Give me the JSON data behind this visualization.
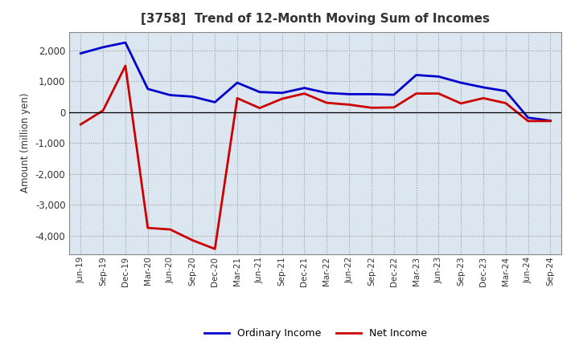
{
  "title": "[3758]  Trend of 12-Month Moving Sum of Incomes",
  "ylabel": "Amount (million yen)",
  "x_labels": [
    "Jun-19",
    "Sep-19",
    "Dec-19",
    "Mar-20",
    "Jun-20",
    "Sep-20",
    "Dec-20",
    "Mar-21",
    "Jun-21",
    "Sep-21",
    "Dec-21",
    "Mar-22",
    "Jun-22",
    "Sep-22",
    "Dec-22",
    "Mar-23",
    "Jun-23",
    "Sep-23",
    "Dec-23",
    "Mar-24",
    "Jun-24",
    "Sep-24"
  ],
  "ordinary_income": [
    1900,
    2100,
    2250,
    750,
    550,
    500,
    320,
    950,
    650,
    620,
    780,
    620,
    580,
    580,
    560,
    1200,
    1150,
    950,
    800,
    680,
    -180,
    -280
  ],
  "net_income": [
    -400,
    50,
    1500,
    -3750,
    -3800,
    -4150,
    -4430,
    450,
    130,
    430,
    600,
    300,
    240,
    140,
    150,
    600,
    600,
    280,
    450,
    290,
    -290,
    -290
  ],
  "ordinary_color": "#0000cc",
  "net_color": "#cc0000",
  "ylim": [
    -4600,
    2600
  ],
  "yticks": [
    -4000,
    -3000,
    -2000,
    -1000,
    0,
    1000,
    2000
  ],
  "plot_bg_color": "#dce6f0",
  "fig_bg_color": "#ffffff",
  "grid_color": "#999999",
  "border_color": "#888888",
  "legend_ordinary": "Ordinary Income",
  "legend_net": "Net Income",
  "title_color": "#333333"
}
